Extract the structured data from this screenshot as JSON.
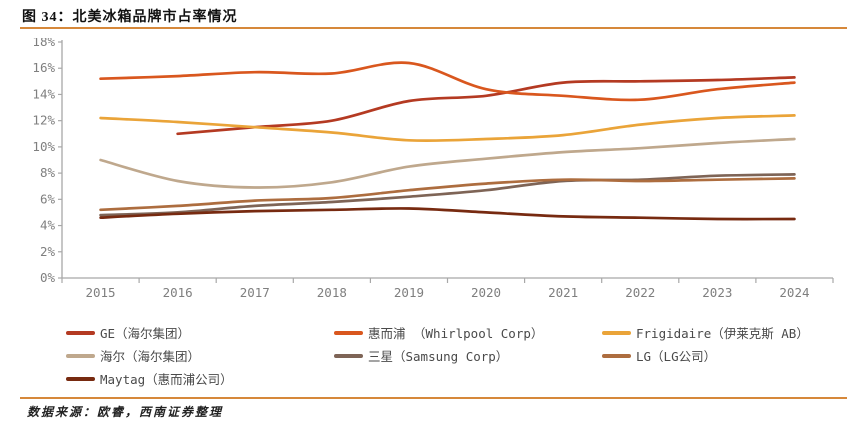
{
  "figure": {
    "title": "图 34：北美冰箱品牌市占率情况",
    "source": "数据来源：欧睿，西南证券整理"
  },
  "colors": {
    "accent_rule": "#d6883a",
    "axis": "#a8a8a8",
    "tick_label": "#7f7f7f"
  },
  "chart_data": {
    "type": "line",
    "title": "北美冰箱品牌市占率情况",
    "categories": [
      "2015",
      "2016",
      "2017",
      "2018",
      "2019",
      "2020",
      "2021",
      "2022",
      "2023",
      "2024"
    ],
    "ylim": [
      0,
      18
    ],
    "ytick_step": 2,
    "ytick_suffix": "%",
    "grid": false,
    "legend_position": "bottom",
    "series": [
      {
        "name": "GE（海尔集团）",
        "color": "#b43a22",
        "values": [
          null,
          11.0,
          11.5,
          12.0,
          13.5,
          13.9,
          14.9,
          15.0,
          15.1,
          15.3
        ]
      },
      {
        "name": "惠而浦 （Whirlpool Corp）",
        "color": "#d9571e",
        "values": [
          15.2,
          15.4,
          15.7,
          15.6,
          16.4,
          14.4,
          13.9,
          13.6,
          14.4,
          14.9
        ]
      },
      {
        "name": "Frigidaire（伊莱克斯 AB）",
        "color": "#eaa439",
        "values": [
          12.2,
          11.9,
          11.5,
          11.1,
          10.5,
          10.6,
          10.9,
          11.7,
          12.2,
          12.4
        ]
      },
      {
        "name": "海尔（海尔集团）",
        "color": "#bfa88d",
        "values": [
          9.0,
          7.4,
          6.9,
          7.3,
          8.5,
          9.1,
          9.6,
          9.9,
          10.3,
          10.6
        ]
      },
      {
        "name": "三星（Samsung Corp）",
        "color": "#7e6456",
        "values": [
          4.8,
          5.0,
          5.5,
          5.8,
          6.2,
          6.7,
          7.4,
          7.5,
          7.8,
          7.9
        ]
      },
      {
        "name": "LG（LG公司）",
        "color": "#ad6d3f",
        "values": [
          5.2,
          5.5,
          5.9,
          6.1,
          6.7,
          7.2,
          7.5,
          7.4,
          7.5,
          7.6
        ]
      },
      {
        "name": "Maytag（惠而浦公司）",
        "color": "#772a10",
        "values": [
          4.6,
          4.9,
          5.1,
          5.2,
          5.3,
          5.0,
          4.7,
          4.6,
          4.5,
          4.5
        ]
      }
    ]
  }
}
